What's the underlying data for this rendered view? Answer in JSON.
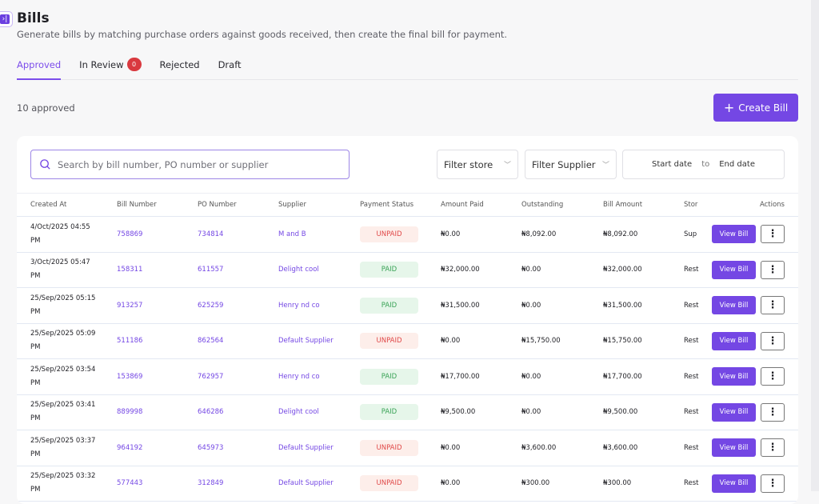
{
  "header": {
    "title": "Bills",
    "subtitle": "Generate bills by matching purchase orders against goods received, then create the final bill for payment.",
    "sidebar_toggle_icon": "sidebar-expand-icon"
  },
  "tabs": [
    {
      "label": "Approved",
      "active": true
    },
    {
      "label": "In Review",
      "badge": "0"
    },
    {
      "label": "Rejected"
    },
    {
      "label": "Draft"
    }
  ],
  "summary": {
    "count_text": "10 approved",
    "create_label": "Create Bill",
    "create_icon": "plus-icon"
  },
  "filters": {
    "search_placeholder": "Search by bill number, PO number or supplier",
    "store": "Filter store",
    "supplier": "Filter Supplier",
    "start_date": "Start date",
    "to": "to",
    "end_date": "End date"
  },
  "colors": {
    "accent": "#7447e4",
    "unpaid": "#e04848",
    "paid": "#3aa357",
    "badge": "#d9393f"
  },
  "table": {
    "columns": [
      "Created At",
      "Bill Number",
      "PO Number",
      "Supplier",
      "Payment Status",
      "Amount Paid",
      "Outstanding",
      "Bill Amount",
      "Stor",
      "Actions"
    ],
    "view_label": "View Bill",
    "more_label": "⋮",
    "rows": [
      {
        "created": "4/Oct/2025 04:55 PM",
        "bill": "758869",
        "po": "734814",
        "supplier": "M and B",
        "status": "UNPAID",
        "paid": "₦0.00",
        "outstanding": "₦8,092.00",
        "amount": "₦8,092.00",
        "store": "Sup"
      },
      {
        "created": "3/Oct/2025 05:47 PM",
        "bill": "158311",
        "po": "611557",
        "supplier": "Delight cool",
        "status": "PAID",
        "paid": "₦32,000.00",
        "outstanding": "₦0.00",
        "amount": "₦32,000.00",
        "store": "Rest"
      },
      {
        "created": "25/Sep/2025 05:15 PM",
        "bill": "913257",
        "po": "625259",
        "supplier": "Henry nd co",
        "status": "PAID",
        "paid": "₦31,500.00",
        "outstanding": "₦0.00",
        "amount": "₦31,500.00",
        "store": "Rest"
      },
      {
        "created": "25/Sep/2025 05:09 PM",
        "bill": "511186",
        "po": "862564",
        "supplier": "Default Supplier",
        "status": "UNPAID",
        "paid": "₦0.00",
        "outstanding": "₦15,750.00",
        "amount": "₦15,750.00",
        "store": "Rest"
      },
      {
        "created": "25/Sep/2025 03:54 PM",
        "bill": "153869",
        "po": "762957",
        "supplier": "Henry nd co",
        "status": "PAID",
        "paid": "₦17,700.00",
        "outstanding": "₦0.00",
        "amount": "₦17,700.00",
        "store": "Rest"
      },
      {
        "created": "25/Sep/2025 03:41 PM",
        "bill": "889998",
        "po": "646286",
        "supplier": "Delight cool",
        "status": "PAID",
        "paid": "₦9,500.00",
        "outstanding": "₦0.00",
        "amount": "₦9,500.00",
        "store": "Rest"
      },
      {
        "created": "25/Sep/2025 03:37 PM",
        "bill": "964192",
        "po": "645973",
        "supplier": "Default Supplier",
        "status": "UNPAID",
        "paid": "₦0.00",
        "outstanding": "₦3,600.00",
        "amount": "₦3,600.00",
        "store": "Rest"
      },
      {
        "created": "25/Sep/2025 03:32 PM",
        "bill": "577443",
        "po": "312849",
        "supplier": "Default Supplier",
        "status": "UNPAID",
        "paid": "₦0.00",
        "outstanding": "₦300.00",
        "amount": "₦300.00",
        "store": "Rest"
      }
    ]
  }
}
